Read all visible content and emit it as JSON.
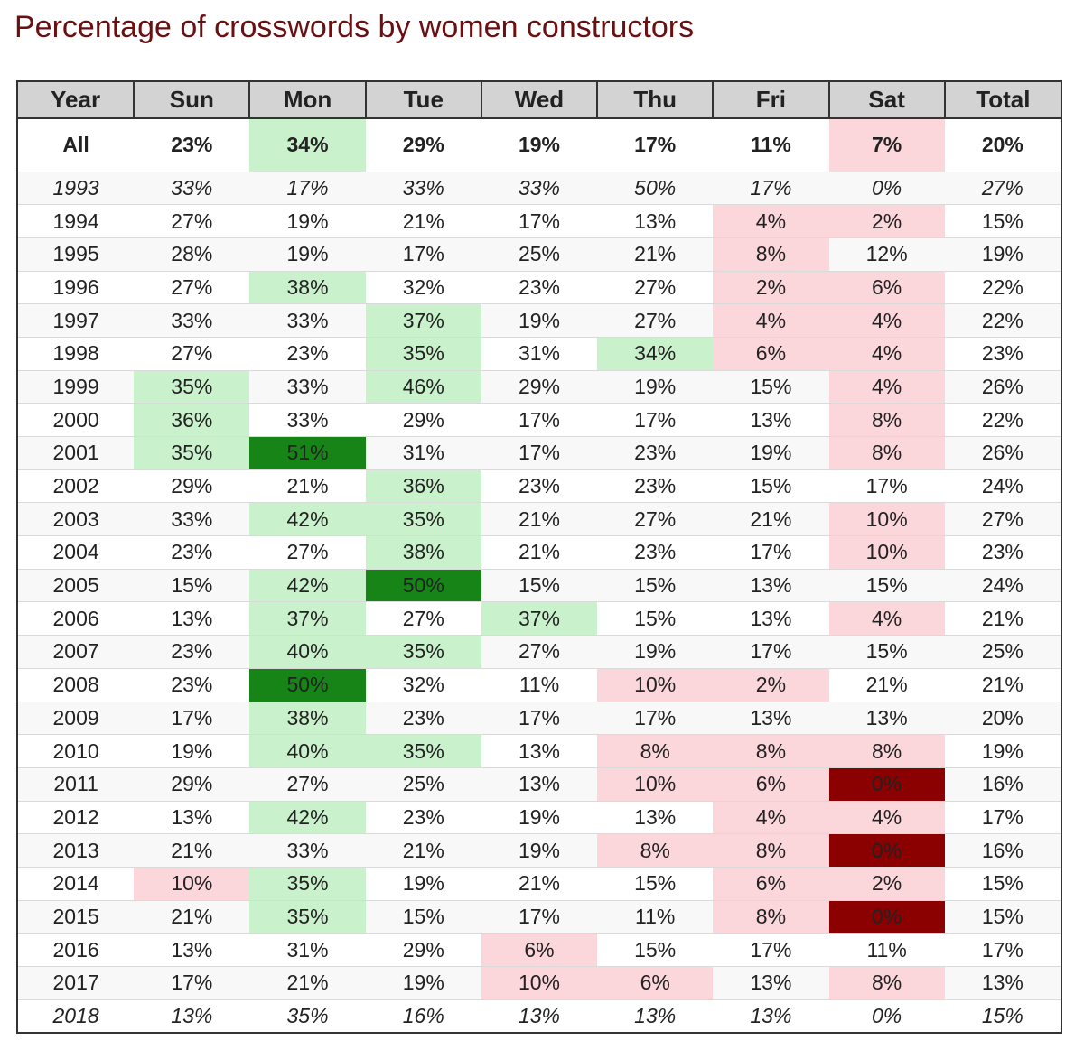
{
  "title": "Percentage of crosswords by women constructors",
  "colors": {
    "title": "#6b0f10",
    "header_bg": "#d3d3d3",
    "high_light": "#c9f2cc",
    "high_dark": "#168416",
    "low_light": "#fbd6db",
    "low_dark": "#8b0000",
    "partial_text": "#aaaaaa"
  },
  "chart_data": {
    "type": "table",
    "title": "Percentage of crosswords by women constructors",
    "columns": [
      "Year",
      "Sun",
      "Mon",
      "Tue",
      "Wed",
      "Thu",
      "Fri",
      "Sat",
      "Total"
    ],
    "rows": [
      {
        "year": "All",
        "values": [
          "23%",
          "34%",
          "29%",
          "19%",
          "17%",
          "11%",
          "7%",
          "20%"
        ],
        "highlight": [
          "",
          "hi-light",
          "",
          "",
          "",
          "",
          "lo-light",
          ""
        ],
        "summary": true
      },
      {
        "year": "1993",
        "values": [
          "33%",
          "17%",
          "33%",
          "33%",
          "50%",
          "17%",
          "0%",
          "27%"
        ],
        "highlight": [
          "",
          "",
          "",
          "",
          "",
          "",
          "",
          ""
        ],
        "partial": true
      },
      {
        "year": "1994",
        "values": [
          "27%",
          "19%",
          "21%",
          "17%",
          "13%",
          "4%",
          "2%",
          "15%"
        ],
        "highlight": [
          "",
          "",
          "",
          "",
          "",
          "lo-light",
          "lo-light",
          ""
        ]
      },
      {
        "year": "1995",
        "values": [
          "28%",
          "19%",
          "17%",
          "25%",
          "21%",
          "8%",
          "12%",
          "19%"
        ],
        "highlight": [
          "",
          "",
          "",
          "",
          "",
          "lo-light",
          "",
          ""
        ]
      },
      {
        "year": "1996",
        "values": [
          "27%",
          "38%",
          "32%",
          "23%",
          "27%",
          "2%",
          "6%",
          "22%"
        ],
        "highlight": [
          "",
          "hi-light",
          "",
          "",
          "",
          "lo-light",
          "lo-light",
          ""
        ]
      },
      {
        "year": "1997",
        "values": [
          "33%",
          "33%",
          "37%",
          "19%",
          "27%",
          "4%",
          "4%",
          "22%"
        ],
        "highlight": [
          "",
          "",
          "hi-light",
          "",
          "",
          "lo-light",
          "lo-light",
          ""
        ]
      },
      {
        "year": "1998",
        "values": [
          "27%",
          "23%",
          "35%",
          "31%",
          "34%",
          "6%",
          "4%",
          "23%"
        ],
        "highlight": [
          "",
          "",
          "hi-light",
          "",
          "hi-light",
          "lo-light",
          "lo-light",
          ""
        ]
      },
      {
        "year": "1999",
        "values": [
          "35%",
          "33%",
          "46%",
          "29%",
          "19%",
          "15%",
          "4%",
          "26%"
        ],
        "highlight": [
          "hi-light",
          "",
          "hi-light",
          "",
          "",
          "",
          "lo-light",
          ""
        ]
      },
      {
        "year": "2000",
        "values": [
          "36%",
          "33%",
          "29%",
          "17%",
          "17%",
          "13%",
          "8%",
          "22%"
        ],
        "highlight": [
          "hi-light",
          "",
          "",
          "",
          "",
          "",
          "lo-light",
          ""
        ]
      },
      {
        "year": "2001",
        "values": [
          "35%",
          "51%",
          "31%",
          "17%",
          "23%",
          "19%",
          "8%",
          "26%"
        ],
        "highlight": [
          "hi-light",
          "hi-dark",
          "",
          "",
          "",
          "",
          "lo-light",
          ""
        ]
      },
      {
        "year": "2002",
        "values": [
          "29%",
          "21%",
          "36%",
          "23%",
          "23%",
          "15%",
          "17%",
          "24%"
        ],
        "highlight": [
          "",
          "",
          "hi-light",
          "",
          "",
          "",
          "",
          ""
        ]
      },
      {
        "year": "2003",
        "values": [
          "33%",
          "42%",
          "35%",
          "21%",
          "27%",
          "21%",
          "10%",
          "27%"
        ],
        "highlight": [
          "",
          "hi-light",
          "hi-light",
          "",
          "",
          "",
          "lo-light",
          ""
        ]
      },
      {
        "year": "2004",
        "values": [
          "23%",
          "27%",
          "38%",
          "21%",
          "23%",
          "17%",
          "10%",
          "23%"
        ],
        "highlight": [
          "",
          "",
          "hi-light",
          "",
          "",
          "",
          "lo-light",
          ""
        ]
      },
      {
        "year": "2005",
        "values": [
          "15%",
          "42%",
          "50%",
          "15%",
          "15%",
          "13%",
          "15%",
          "24%"
        ],
        "highlight": [
          "",
          "hi-light",
          "hi-dark",
          "",
          "",
          "",
          "",
          ""
        ]
      },
      {
        "year": "2006",
        "values": [
          "13%",
          "37%",
          "27%",
          "37%",
          "15%",
          "13%",
          "4%",
          "21%"
        ],
        "highlight": [
          "",
          "hi-light",
          "",
          "hi-light",
          "",
          "",
          "lo-light",
          ""
        ]
      },
      {
        "year": "2007",
        "values": [
          "23%",
          "40%",
          "35%",
          "27%",
          "19%",
          "17%",
          "15%",
          "25%"
        ],
        "highlight": [
          "",
          "hi-light",
          "hi-light",
          "",
          "",
          "",
          "",
          ""
        ]
      },
      {
        "year": "2008",
        "values": [
          "23%",
          "50%",
          "32%",
          "11%",
          "10%",
          "2%",
          "21%",
          "21%"
        ],
        "highlight": [
          "",
          "hi-dark",
          "",
          "",
          "lo-light",
          "lo-light",
          "",
          ""
        ]
      },
      {
        "year": "2009",
        "values": [
          "17%",
          "38%",
          "23%",
          "17%",
          "17%",
          "13%",
          "13%",
          "20%"
        ],
        "highlight": [
          "",
          "hi-light",
          "",
          "",
          "",
          "",
          "",
          ""
        ]
      },
      {
        "year": "2010",
        "values": [
          "19%",
          "40%",
          "35%",
          "13%",
          "8%",
          "8%",
          "8%",
          "19%"
        ],
        "highlight": [
          "",
          "hi-light",
          "hi-light",
          "",
          "lo-light",
          "lo-light",
          "lo-light",
          ""
        ]
      },
      {
        "year": "2011",
        "values": [
          "29%",
          "27%",
          "25%",
          "13%",
          "10%",
          "6%",
          "0%",
          "16%"
        ],
        "highlight": [
          "",
          "",
          "",
          "",
          "lo-light",
          "lo-light",
          "lo-dark",
          ""
        ]
      },
      {
        "year": "2012",
        "values": [
          "13%",
          "42%",
          "23%",
          "19%",
          "13%",
          "4%",
          "4%",
          "17%"
        ],
        "highlight": [
          "",
          "hi-light",
          "",
          "",
          "",
          "lo-light",
          "lo-light",
          ""
        ]
      },
      {
        "year": "2013",
        "values": [
          "21%",
          "33%",
          "21%",
          "19%",
          "8%",
          "8%",
          "0%",
          "16%"
        ],
        "highlight": [
          "",
          "",
          "",
          "",
          "lo-light",
          "lo-light",
          "lo-dark",
          ""
        ]
      },
      {
        "year": "2014",
        "values": [
          "10%",
          "35%",
          "19%",
          "21%",
          "15%",
          "6%",
          "2%",
          "15%"
        ],
        "highlight": [
          "lo-light",
          "hi-light",
          "",
          "",
          "",
          "lo-light",
          "lo-light",
          ""
        ]
      },
      {
        "year": "2015",
        "values": [
          "21%",
          "35%",
          "15%",
          "17%",
          "11%",
          "8%",
          "0%",
          "15%"
        ],
        "highlight": [
          "",
          "hi-light",
          "",
          "",
          "",
          "lo-light",
          "lo-dark",
          ""
        ]
      },
      {
        "year": "2016",
        "values": [
          "13%",
          "31%",
          "29%",
          "6%",
          "15%",
          "17%",
          "11%",
          "17%"
        ],
        "highlight": [
          "",
          "",
          "",
          "lo-light",
          "",
          "",
          "",
          ""
        ]
      },
      {
        "year": "2017",
        "values": [
          "17%",
          "21%",
          "19%",
          "10%",
          "6%",
          "13%",
          "8%",
          "13%"
        ],
        "highlight": [
          "",
          "",
          "",
          "lo-light",
          "lo-light",
          "",
          "lo-light",
          ""
        ]
      },
      {
        "year": "2018",
        "values": [
          "13%",
          "35%",
          "16%",
          "13%",
          "13%",
          "13%",
          "0%",
          "15%"
        ],
        "highlight": [
          "",
          "",
          "",
          "",
          "",
          "",
          "",
          ""
        ],
        "partial": true
      }
    ]
  }
}
